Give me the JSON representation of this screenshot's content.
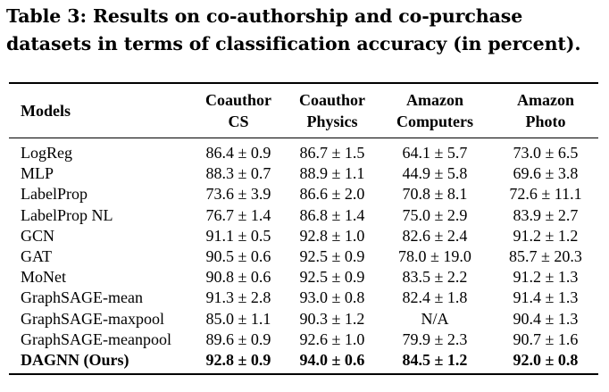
{
  "caption": "Table 3: Results on co-authorship and co-purchase datasets in terms of classification accuracy (in percent).",
  "table": {
    "headers": {
      "models": "Models",
      "cs_line1": "Coauthor",
      "cs_line2": "CS",
      "phys_line1": "Coauthor",
      "phys_line2": "Physics",
      "comp_line1": "Amazon",
      "comp_line2": "Computers",
      "photo_line1": "Amazon",
      "photo_line2": "Photo"
    },
    "rows": [
      {
        "model": "LogReg",
        "cs": "86.4 ± 0.9",
        "phys": "86.7 ± 1.5",
        "comp": "64.1 ± 5.7",
        "photo": "73.0 ± 6.5"
      },
      {
        "model": "MLP",
        "cs": "88.3 ± 0.7",
        "phys": "88.9 ± 1.1",
        "comp": "44.9 ± 5.8",
        "photo": "69.6 ± 3.8"
      },
      {
        "model": "LabelProp",
        "cs": "73.6 ± 3.9",
        "phys": "86.6 ± 2.0",
        "comp": "70.8 ± 8.1",
        "photo": "72.6 ± 11.1"
      },
      {
        "model": "LabelProp NL",
        "cs": "76.7 ± 1.4",
        "phys": "86.8 ± 1.4",
        "comp": "75.0 ± 2.9",
        "photo": "83.9 ± 2.7"
      },
      {
        "model": "GCN",
        "cs": "91.1 ± 0.5",
        "phys": "92.8 ± 1.0",
        "comp": "82.6 ± 2.4",
        "photo": "91.2 ± 1.2"
      },
      {
        "model": "GAT",
        "cs": "90.5 ± 0.6",
        "phys": "92.5 ± 0.9",
        "comp": "78.0 ± 19.0",
        "photo": "85.7 ± 20.3"
      },
      {
        "model": "MoNet",
        "cs": "90.8 ± 0.6",
        "phys": "92.5 ± 0.9",
        "comp": "83.5 ± 2.2",
        "photo": "91.2 ± 1.3"
      },
      {
        "model": "GraphSAGE-mean",
        "cs": "91.3 ± 2.8",
        "phys": "93.0 ± 0.8",
        "comp": "82.4 ± 1.8",
        "photo": "91.4 ± 1.3"
      },
      {
        "model": "GraphSAGE-maxpool",
        "cs": "85.0 ± 1.1",
        "phys": "90.3 ± 1.2",
        "comp": "N/A",
        "photo": "90.4 ± 1.3"
      },
      {
        "model": "GraphSAGE-meanpool",
        "cs": "89.6 ± 0.9",
        "phys": "92.6 ± 1.0",
        "comp": "79.9 ± 2.3",
        "photo": "90.7 ± 1.6"
      },
      {
        "model": "DAGNN (Ours)",
        "cs": "92.8 ± 0.9",
        "phys": "94.0 ± 0.6",
        "comp": "84.5 ± 1.2",
        "photo": "92.0 ± 0.8"
      }
    ]
  }
}
